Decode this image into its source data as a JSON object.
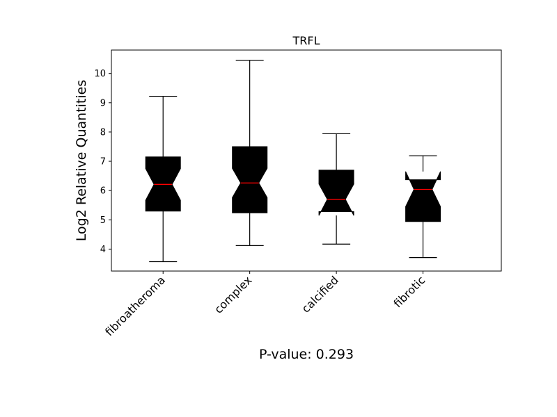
{
  "chart_data": {
    "type": "box",
    "title": "TRFL",
    "ylabel": "Log2 Relative Quantities",
    "xlabel": "",
    "annotation": "P-value: 0.293",
    "ylim": [
      3.25,
      10.8
    ],
    "yticks": [
      4,
      5,
      6,
      7,
      8,
      9,
      10
    ],
    "categories": [
      "fibroatheroma",
      "complex",
      "calcified",
      "fibrotic"
    ],
    "boxes": [
      {
        "whisker_low": 3.57,
        "q1": 5.3,
        "median": 6.21,
        "q3": 7.15,
        "whisker_high": 9.22,
        "notch_low": 5.67,
        "notch_high": 6.75
      },
      {
        "whisker_low": 4.12,
        "q1": 5.24,
        "median": 6.26,
        "q3": 7.5,
        "whisker_high": 10.45,
        "notch_low": 5.76,
        "notch_high": 6.76
      },
      {
        "whisker_low": 4.17,
        "q1": 5.28,
        "median": 5.7,
        "q3": 6.7,
        "whisker_high": 7.94,
        "notch_low": 5.15,
        "notch_high": 6.22
      },
      {
        "whisker_low": 3.71,
        "q1": 4.94,
        "median": 6.04,
        "q3": 6.37,
        "whisker_high": 7.19,
        "notch_low": 5.45,
        "notch_high": 6.65
      }
    ],
    "colors": {
      "box_fill": "#000000",
      "median": "#ff0000",
      "axes": "#000000"
    },
    "grid": false
  }
}
